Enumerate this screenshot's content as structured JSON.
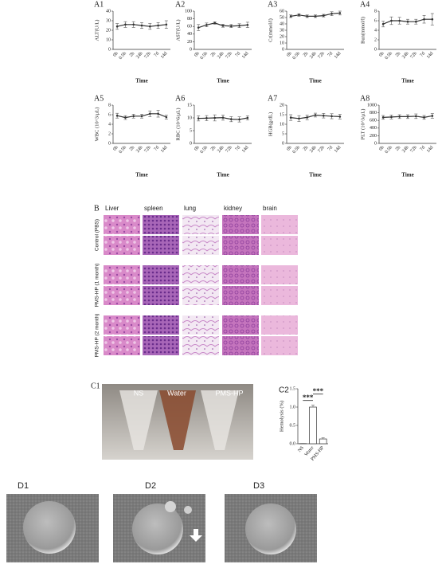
{
  "chart_data": [
    {
      "type": "line",
      "panel_label": "A1",
      "y_label": "ALT(U/L)",
      "x_label": "Time",
      "categories": [
        "0h",
        "0.5h",
        "2h",
        "24h",
        "72h",
        "7d",
        "14d"
      ],
      "values": [
        24,
        26,
        26,
        25,
        24,
        25,
        26
      ],
      "errors": [
        3,
        3,
        3,
        3,
        3,
        3,
        4
      ],
      "ylim": [
        0,
        40
      ],
      "yticks": [
        0,
        10,
        20,
        30,
        40
      ],
      "color": "#333333"
    },
    {
      "type": "line",
      "panel_label": "A2",
      "y_label": "AST(U/L)",
      "x_label": "Time",
      "categories": [
        "0h",
        "0.5h",
        "2h",
        "24h",
        "72h",
        "7d",
        "14d"
      ],
      "values": [
        57,
        64,
        69,
        62,
        61,
        62,
        64
      ],
      "errors": [
        8,
        5,
        3,
        4,
        4,
        5,
        7
      ],
      "ylim": [
        0,
        100
      ],
      "yticks": [
        0,
        20,
        40,
        60,
        80,
        100
      ],
      "color": "#333333"
    },
    {
      "type": "line",
      "panel_label": "A3",
      "y_label": "Cr(mmol/l)",
      "x_label": "Time",
      "categories": [
        "0h",
        "0.5h",
        "2h",
        "24h",
        "72h",
        "7d",
        "14d"
      ],
      "values": [
        52,
        54,
        52,
        52,
        53,
        56,
        57
      ],
      "errors": [
        2,
        2,
        2,
        2,
        2,
        3,
        3
      ],
      "ylim": [
        0,
        60
      ],
      "yticks": [
        0,
        10,
        20,
        30,
        40,
        50,
        60
      ],
      "color": "#333333"
    },
    {
      "type": "line",
      "panel_label": "A4",
      "y_label": "Bun(mmol/l)",
      "x_label": "Time",
      "categories": [
        "0h",
        "0.5h",
        "2h",
        "24h",
        "72h",
        "7d",
        "14d"
      ],
      "values": [
        5.3,
        6,
        6,
        5.8,
        5.8,
        6.3,
        6.3
      ],
      "errors": [
        0.6,
        0.8,
        0.7,
        0.5,
        0.5,
        0.8,
        1.2
      ],
      "ylim": [
        0,
        8
      ],
      "yticks": [
        0,
        2,
        4,
        6,
        8
      ],
      "color": "#333333"
    },
    {
      "type": "line",
      "panel_label": "A5",
      "y_label": "WBC (10^3/μL)",
      "x_label": "Time",
      "categories": [
        "0h",
        "0.5h",
        "2h",
        "24h",
        "72h",
        "7d",
        "14d"
      ],
      "values": [
        5.8,
        5.4,
        5.7,
        5.7,
        6.2,
        6.2,
        5.5
      ],
      "errors": [
        0.5,
        0.4,
        0.4,
        0.4,
        0.6,
        0.7,
        0.4
      ],
      "ylim": [
        0,
        8
      ],
      "yticks": [
        0,
        2,
        4,
        6,
        8
      ],
      "color": "#333333"
    },
    {
      "type": "line",
      "panel_label": "A6",
      "y_label": "RBC (10^6/μL)",
      "x_label": "Time",
      "categories": [
        "0h",
        "0.5h",
        "2h",
        "24h",
        "72h",
        "7d",
        "14d"
      ],
      "values": [
        9.8,
        9.9,
        10,
        10.1,
        9.5,
        9.4,
        10
      ],
      "errors": [
        1,
        1,
        1.2,
        1,
        1,
        1,
        0.8
      ],
      "ylim": [
        0,
        15
      ],
      "yticks": [
        0,
        5,
        10,
        15
      ],
      "color": "#333333"
    },
    {
      "type": "line",
      "panel_label": "A7",
      "y_label": "HGB(g/dL)",
      "x_label": "Time",
      "categories": [
        "0h",
        "0.5h",
        "2h",
        "24h",
        "72h",
        "7d",
        "14d"
      ],
      "values": [
        13.5,
        13,
        13.6,
        14.8,
        14.5,
        14.2,
        14
      ],
      "errors": [
        1.5,
        1.5,
        1.2,
        1,
        1.2,
        1.3,
        1.2
      ],
      "ylim": [
        0,
        20
      ],
      "yticks": [
        0,
        5,
        10,
        15,
        20
      ],
      "color": "#333333"
    },
    {
      "type": "line",
      "panel_label": "A8",
      "y_label": "PLT (10^3/μL)",
      "x_label": "Time",
      "categories": [
        "0h",
        "0.5h",
        "2h",
        "24h",
        "72h",
        "7d",
        "14d"
      ],
      "values": [
        680,
        690,
        700,
        700,
        710,
        680,
        720
      ],
      "errors": [
        50,
        50,
        50,
        50,
        60,
        50,
        60
      ],
      "ylim": [
        0,
        1000
      ],
      "yticks": [
        0,
        200,
        400,
        600,
        800,
        1000
      ],
      "color": "#333333"
    },
    {
      "type": "bar",
      "panel_label": "C2",
      "y_label": "Hemolysis (%)",
      "categories": [
        "NS",
        "Water",
        "PMS-HP"
      ],
      "values": [
        0.005,
        1.0,
        0.13
      ],
      "errors": [
        0.003,
        0.05,
        0.03
      ],
      "ylim": [
        0,
        1.5
      ],
      "yticks": [
        {
          "value": 0,
          "label": "0.0"
        },
        {
          "value": 0.5,
          "label": "0.5"
        },
        {
          "value": 1,
          "label": "1.0"
        },
        {
          "value": 1.5,
          "label": "1.5"
        }
      ],
      "annotations": [
        "***",
        "***"
      ],
      "color": "#ffffff"
    }
  ],
  "histology": {
    "label": "B",
    "columns": [
      "Liver",
      "spleen",
      "lung",
      "kidney",
      "brain"
    ],
    "rows": [
      "Control (PBS)",
      "PMS-HP (1 month)",
      "PMS-HP (2 month)"
    ]
  },
  "hemolysis_photo": {
    "label": "C1",
    "tubes": [
      "NS",
      "Water",
      "PMS-HP"
    ]
  },
  "sem": {
    "labels": [
      "D1",
      "D2",
      "D3"
    ]
  }
}
